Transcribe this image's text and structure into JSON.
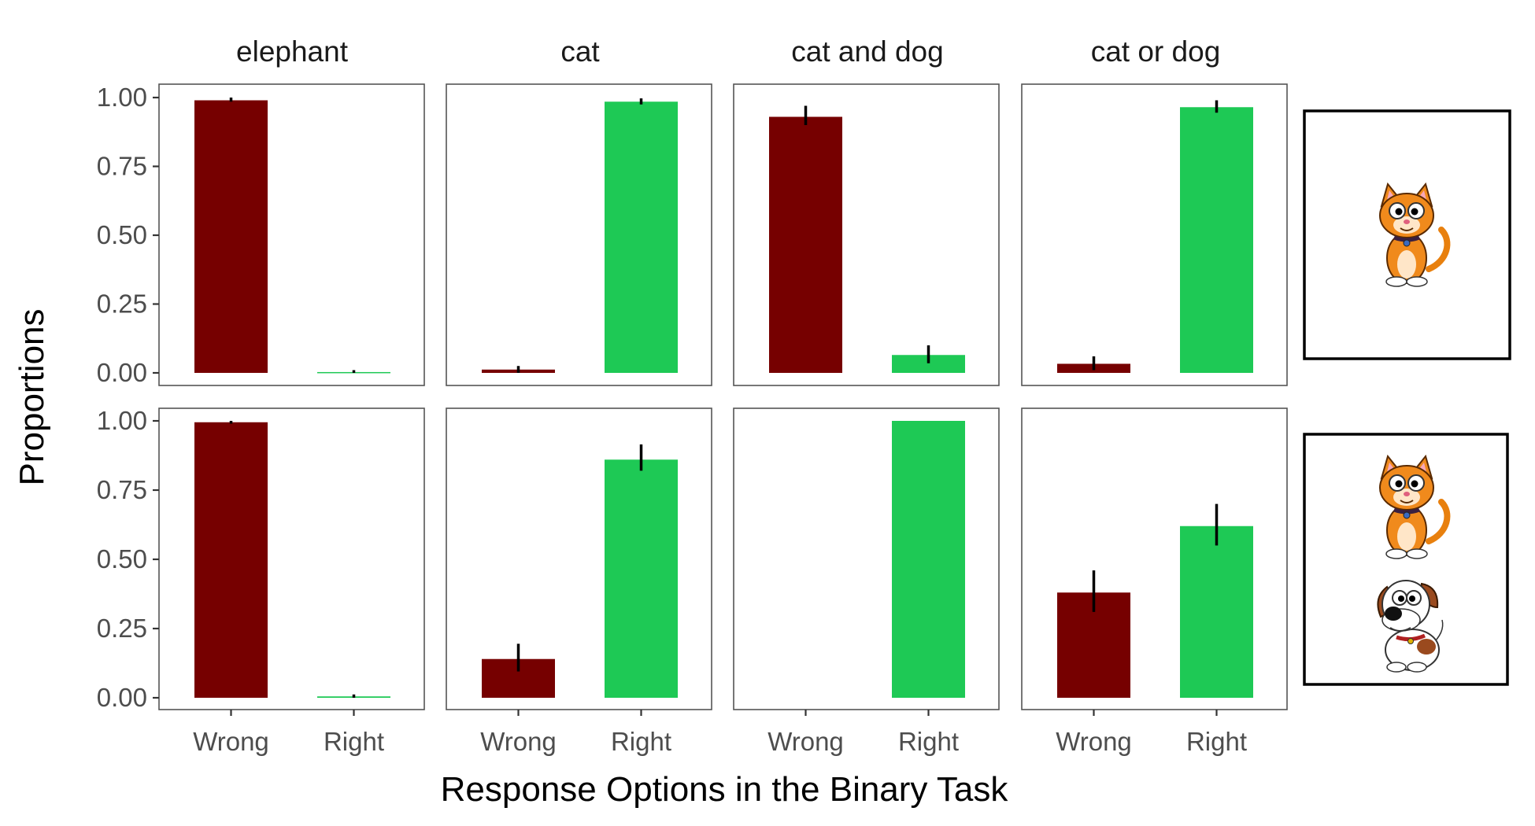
{
  "chart_data": {
    "type": "bar",
    "layout": "faceted grid, 2 rows x 4 columns",
    "panels": [
      "elephant",
      "cat",
      "cat and dog",
      "cat or dog"
    ],
    "categories": [
      "Wrong",
      "Right"
    ],
    "xlabel": "Response Options in the Binary Task",
    "ylabel": "Proportions",
    "ylim": [
      0,
      1
    ],
    "y_ticks": [
      "0.00",
      "0.25",
      "0.50",
      "0.75",
      "1.00"
    ],
    "colors": {
      "Wrong": "#760000",
      "Right": "#1ec955"
    },
    "grid": false,
    "legend": "none",
    "rows": [
      {
        "stimulus": [
          "cat"
        ],
        "panels": [
          {
            "values": [
              0.99,
              0.003
            ],
            "error": [
              [
                0.985,
                1.0
              ],
              [
                0.0,
                0.01
              ]
            ]
          },
          {
            "values": [
              0.012,
              0.985
            ],
            "error": [
              [
                0.0,
                0.025
              ],
              [
                0.975,
                0.997
              ]
            ]
          },
          {
            "values": [
              0.93,
              0.065
            ],
            "error": [
              [
                0.9,
                0.97
              ],
              [
                0.035,
                0.1
              ]
            ]
          },
          {
            "values": [
              0.033,
              0.965
            ],
            "error": [
              [
                0.01,
                0.06
              ],
              [
                0.945,
                0.99
              ]
            ]
          }
        ]
      },
      {
        "stimulus": [
          "cat",
          "dog"
        ],
        "panels": [
          {
            "values": [
              0.995,
              0.005
            ],
            "error": [
              [
                0.99,
                1.0
              ],
              [
                0.0,
                0.012
              ]
            ]
          },
          {
            "values": [
              0.14,
              0.86
            ],
            "error": [
              [
                0.095,
                0.195
              ],
              [
                0.82,
                0.915
              ]
            ]
          },
          {
            "values": [
              0.0,
              1.0
            ],
            "error": [
              null,
              null
            ]
          },
          {
            "values": [
              0.38,
              0.62
            ],
            "error": [
              [
                0.31,
                0.46
              ],
              [
                0.55,
                0.7
              ]
            ]
          }
        ]
      }
    ]
  }
}
